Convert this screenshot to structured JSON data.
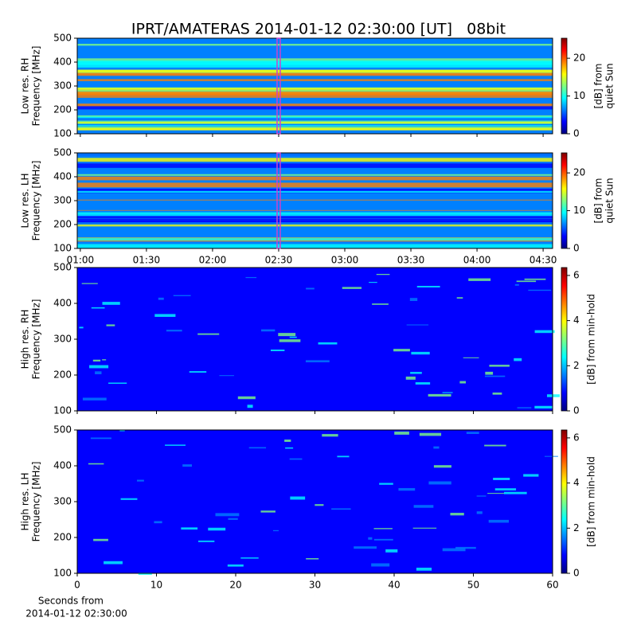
{
  "chart_data": [
    {
      "type": "spectrogram",
      "title": "IPRT/AMATERAS 2014-01-12 02:30:00 [UT]   08bit",
      "ylabel": [
        "Low res. RH",
        "Frequency [MHz]"
      ],
      "ylim": [
        100,
        500
      ],
      "yticks": [
        100,
        200,
        300,
        400,
        500
      ],
      "xlim": [
        58.6,
        274.3
      ],
      "xticks": [
        60,
        90,
        120,
        150,
        180,
        210,
        240,
        270
      ],
      "highlight_x": 150,
      "highlight_color": "#cc44cc",
      "colorbar": {
        "label": [
          "[dB] from",
          "quiet Sun"
        ],
        "lim": [
          0,
          25.3
        ],
        "ticks": [
          0,
          10,
          20
        ]
      }
    },
    {
      "type": "spectrogram",
      "ylabel": [
        "Low res. LH",
        "Frequency [MHz]"
      ],
      "ylim": [
        100,
        500
      ],
      "yticks": [
        100,
        200,
        300,
        400,
        500
      ],
      "xlim": [
        58.6,
        274.3
      ],
      "xticks": [
        {
          "value": 60,
          "label": "01:00"
        },
        {
          "value": 90,
          "label": "01:30"
        },
        {
          "value": 120,
          "label": "02:00"
        },
        {
          "value": 150,
          "label": "02:30"
        },
        {
          "value": 180,
          "label": "03:00"
        },
        {
          "value": 210,
          "label": "03:30"
        },
        {
          "value": 240,
          "label": "04:00"
        },
        {
          "value": 270,
          "label": "04:30"
        }
      ],
      "highlight_x": 150,
      "highlight_color": "#cc44cc",
      "colorbar": {
        "label": [
          "[dB] from",
          "quiet Sun"
        ],
        "lim": [
          0,
          25.3
        ],
        "ticks": [
          0,
          10,
          20
        ]
      }
    },
    {
      "type": "spectrogram",
      "ylabel": [
        "High res. RH",
        "Frequency [MHz]"
      ],
      "ylim": [
        100,
        500
      ],
      "yticks": [
        100,
        200,
        300,
        400,
        500
      ],
      "xlim": [
        0,
        60
      ],
      "xticks": [
        0,
        10,
        20,
        30,
        40,
        50,
        60
      ],
      "colorbar": {
        "label": [
          "[dB] from min-hold"
        ],
        "lim": [
          0,
          6.35
        ],
        "ticks": [
          0,
          2,
          4,
          6
        ]
      }
    },
    {
      "type": "spectrogram",
      "ylabel": [
        "High res. LH",
        "Frequency [MHz]"
      ],
      "ylim": [
        100,
        500
      ],
      "yticks": [
        100,
        200,
        300,
        400,
        500
      ],
      "xlim": [
        0,
        60
      ],
      "xticks": [
        0,
        10,
        20,
        30,
        40,
        50,
        60
      ],
      "show_xtick_labels": true,
      "xlabel": [
        "Seconds from",
        "2014-01-12 02:30:00"
      ],
      "colorbar": {
        "label": [
          "[dB] from min-hold"
        ],
        "lim": [
          0,
          6.35
        ],
        "ticks": [
          0,
          2,
          4,
          6
        ]
      }
    }
  ],
  "colormap": [
    "#00007f",
    "#0000ff",
    "#0080ff",
    "#00ffff",
    "#80ff80",
    "#ffff00",
    "#ff8000",
    "#ff0000",
    "#7f0000"
  ]
}
